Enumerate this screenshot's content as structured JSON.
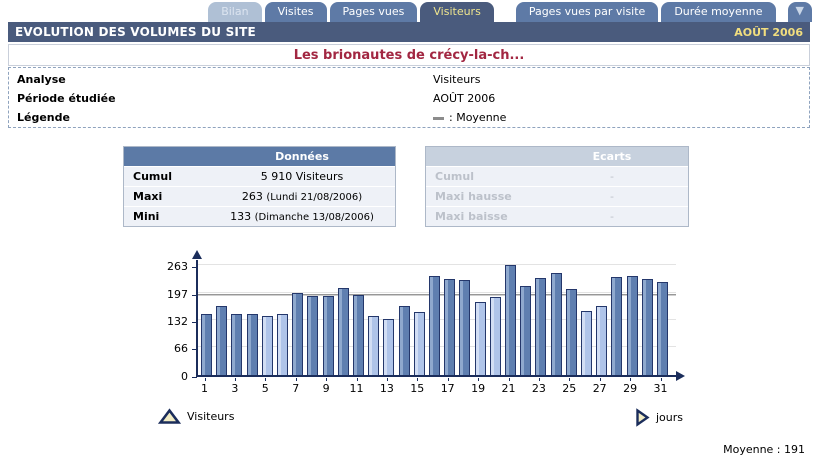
{
  "tabs": [
    {
      "label": "Bilan",
      "state": "disabled"
    },
    {
      "label": "Visites",
      "state": "normal"
    },
    {
      "label": "Pages vues",
      "state": "normal"
    },
    {
      "label": "Visiteurs",
      "state": "active"
    },
    {
      "label": "Pages vues par visite",
      "state": "normal"
    },
    {
      "label": "Durée moyenne",
      "state": "normal"
    },
    {
      "label": "",
      "state": "dropdown",
      "icon": "chevron-down"
    }
  ],
  "header": {
    "title": "EVOLUTION DES VOLUMES DU SITE",
    "period": "AOÛT 2006"
  },
  "site_title": "Les brionautes de crécy-la-ch...",
  "info": {
    "rows": [
      {
        "label": "Analyse",
        "value": "Visiteurs"
      },
      {
        "label": "Période étudiée",
        "value": "AOÛT 2006"
      },
      {
        "label": "Légende",
        "value": ": Moyenne"
      }
    ]
  },
  "donnees": {
    "title": "Données",
    "rows": [
      {
        "label": "Cumul",
        "value": "5 910 Visiteurs",
        "detail": ""
      },
      {
        "label": "Maxi",
        "value": "263",
        "detail": "(Lundi 21/08/2006)"
      },
      {
        "label": "Mini",
        "value": "133",
        "detail": "(Dimanche 13/08/2006)"
      }
    ]
  },
  "ecarts": {
    "title": "Ecarts",
    "rows": [
      {
        "label": "Cumul",
        "value": "-"
      },
      {
        "label": "Maxi hausse",
        "value": "-"
      },
      {
        "label": "Maxi baisse",
        "value": "-"
      }
    ]
  },
  "chart_data": {
    "type": "bar",
    "title": "Evolution des volumes du site - Visiteurs - Août 2006",
    "xlabel": "jours",
    "ylabel": "Visiteurs",
    "x": [
      1,
      2,
      3,
      4,
      5,
      6,
      7,
      8,
      9,
      10,
      11,
      12,
      13,
      14,
      15,
      16,
      17,
      18,
      19,
      20,
      21,
      22,
      23,
      24,
      25,
      26,
      27,
      28,
      29,
      30,
      31
    ],
    "values": [
      147,
      165,
      147,
      147,
      140,
      147,
      197,
      190,
      190,
      208,
      192,
      140,
      133,
      164,
      150,
      236,
      230,
      226,
      174,
      186,
      263,
      213,
      232,
      245,
      206,
      154,
      166,
      234,
      237,
      229,
      222
    ],
    "light_days": [
      5,
      6,
      12,
      13,
      15,
      19,
      20,
      26,
      27
    ],
    "yticks": [
      0,
      66,
      132,
      197,
      263
    ],
    "ylim": [
      0,
      263
    ],
    "average": 191,
    "xtick_labels": [
      1,
      3,
      5,
      7,
      9,
      11,
      13,
      15,
      17,
      19,
      21,
      23,
      25,
      27,
      29,
      31
    ],
    "grid": true,
    "legend_position": "below",
    "colors": {
      "bar": "#5F7FB0",
      "bar_light": "#AFC4E9",
      "bar_border": "#24376B",
      "average_line": "#979797",
      "axis": "#1B2D5B"
    }
  },
  "chart_legend": {
    "series_label": "Visiteurs",
    "x_axis_label": "jours"
  },
  "footer": {
    "average_label": "Moyenne : 191"
  }
}
